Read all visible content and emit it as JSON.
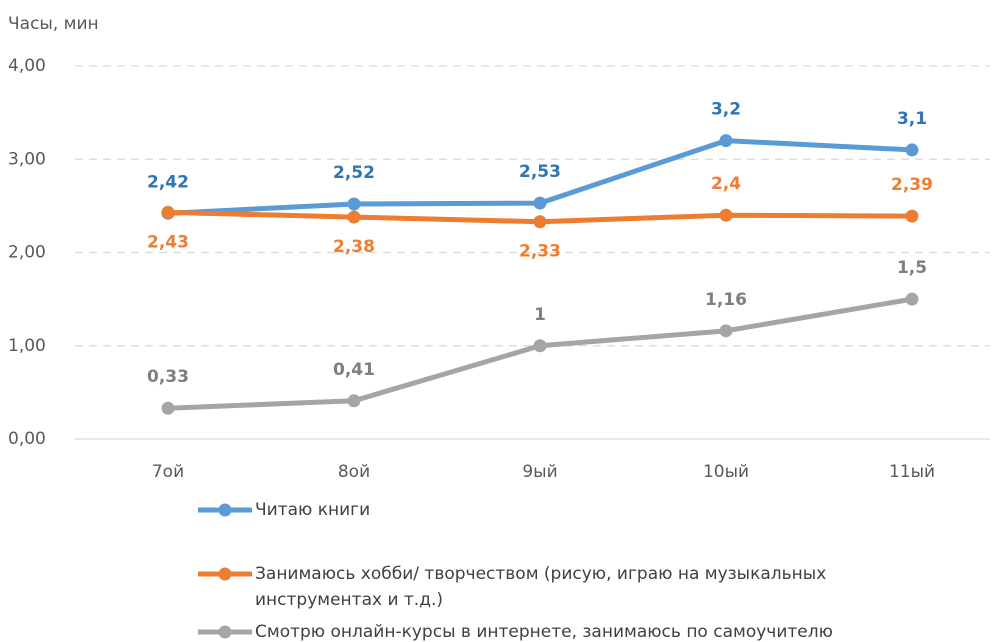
{
  "chart_data": {
    "type": "line",
    "y_axis_label": "Часы, мин",
    "categories": [
      "7ой",
      "8ой",
      "9ый",
      "10ый",
      "11ый"
    ],
    "series": [
      {
        "name": "Читаю книги",
        "color": "#5b9bd5",
        "values": [
          2.42,
          2.52,
          2.53,
          3.2,
          3.1
        ],
        "value_labels": [
          "2,42",
          "2,52",
          "2,53",
          "3,2",
          "3,1"
        ]
      },
      {
        "name": "Занимаюсь хобби/ творчеством (рисую, играю на музыкальных инструментах и т.д.)",
        "color": "#ed7d31",
        "values": [
          2.43,
          2.38,
          2.33,
          2.4,
          2.39
        ],
        "value_labels": [
          "2,43",
          "2,38",
          "2,33",
          "2,4",
          "2,39"
        ]
      },
      {
        "name": "Смотрю онлайн-курсы в интернете, занимаюсь по самоучителю",
        "color": "#a5a5a5",
        "values": [
          0.33,
          0.41,
          1,
          1.16,
          1.5
        ],
        "value_labels": [
          "0,33",
          "0,41",
          "1",
          "1,16",
          "1,5"
        ]
      }
    ],
    "ylim": [
      0,
      4
    ],
    "yticks": [
      {
        "value": 0,
        "label": "0,00"
      },
      {
        "value": 1,
        "label": "1,00"
      },
      {
        "value": 2,
        "label": "2,00"
      },
      {
        "value": 3,
        "label": "3,00"
      },
      {
        "value": 4,
        "label": "4,00"
      }
    ],
    "grid": true
  }
}
